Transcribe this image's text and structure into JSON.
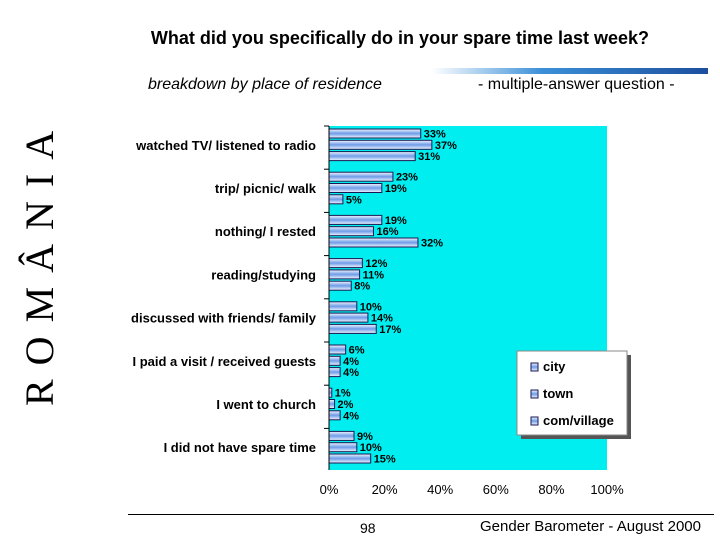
{
  "sidebar_text": "ROMÂNIA",
  "header": {
    "title": "What did you specifically do in your spare time last week?",
    "subtitle_left": "breakdown by place of residence",
    "subtitle_right": "- multiple-answer question -"
  },
  "footer": {
    "page_number": "98",
    "source": "Gender Barometer - August 2000"
  },
  "colors": {
    "plot_bg": "#00eef0",
    "bar_fill": "#6f9ce8",
    "bar_light": "#f3f6ff",
    "bar_stroke": "#1a1a50"
  },
  "chart_data": {
    "type": "bar",
    "orientation": "horizontal",
    "categories": [
      "watched TV/ listened to radio",
      "trip/ picnic/ walk",
      "nothing/ I rested",
      "reading/studying",
      "discussed with friends/ family",
      "I paid a visit /  received guests",
      "I went to church",
      "I did not have spare time"
    ],
    "series": [
      {
        "name": "city",
        "values": [
          33,
          23,
          19,
          12,
          10,
          6,
          1,
          9
        ]
      },
      {
        "name": "town",
        "values": [
          37,
          19,
          16,
          11,
          14,
          4,
          2,
          10
        ]
      },
      {
        "name": "com/village",
        "values": [
          31,
          5,
          32,
          8,
          17,
          4,
          4,
          15
        ]
      }
    ],
    "value_suffix": "%",
    "xlim": [
      0,
      100
    ],
    "xticks": [
      "0%",
      "20%",
      "40%",
      "60%",
      "80%",
      "100%"
    ],
    "xtick_values": [
      0,
      20,
      40,
      60,
      80,
      100
    ],
    "legend_position": "lower-right",
    "grid": false
  }
}
